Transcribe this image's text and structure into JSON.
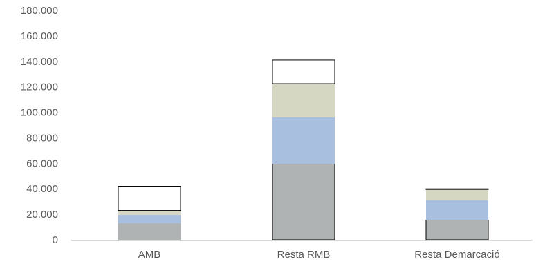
{
  "chart_data": {
    "type": "bar",
    "stacked": true,
    "categories": [
      "AMB",
      "Resta RMB",
      "Resta Demarcació"
    ],
    "series": [
      {
        "values": [
          13000,
          59500,
          15500
        ],
        "color": "#b0b3b3",
        "outlined": [
          false,
          true,
          true
        ]
      },
      {
        "values": [
          6500,
          36500,
          15500
        ],
        "color": "#a8bfe0",
        "outlined": [
          false,
          false,
          false
        ]
      },
      {
        "values": [
          3500,
          26500,
          8500
        ],
        "color": "#d5d7c3",
        "outlined": [
          false,
          false,
          false
        ]
      },
      {
        "values": [
          19000,
          18500,
          500
        ],
        "color": "#ffffff",
        "outlined": [
          true,
          true,
          true
        ]
      }
    ],
    "y_ticks": [
      "0",
      "20.000",
      "40.000",
      "60.000",
      "80.000",
      "100.000",
      "120.000",
      "140.000",
      "160.000",
      "180.000"
    ],
    "ylim": [
      0,
      180000
    ],
    "grid": false,
    "legend": "none",
    "axis_color": "#d9d9d9",
    "text_color": "#595959"
  }
}
